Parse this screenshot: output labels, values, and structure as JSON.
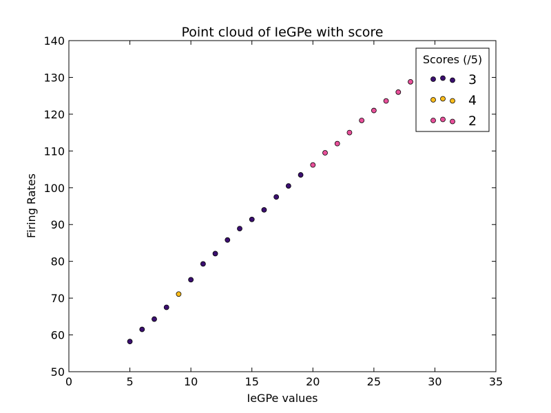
{
  "chart_data": {
    "type": "scatter",
    "title": "Point cloud of IeGPe with score",
    "xlabel": "IeGPe values",
    "ylabel": "Firing Rates",
    "xlim": [
      0,
      35
    ],
    "ylim": [
      50,
      140
    ],
    "xticks": [
      0,
      5,
      10,
      15,
      20,
      25,
      30,
      35
    ],
    "yticks": [
      50,
      60,
      70,
      80,
      90,
      100,
      110,
      120,
      130,
      140
    ],
    "grid": false,
    "legend": {
      "title": "Scores (/5)",
      "placement": "top-right",
      "entries": [
        {
          "label": "3",
          "color": "#3b0f70"
        },
        {
          "label": "4",
          "color": "#fcbc1c"
        },
        {
          "label": "2",
          "color": "#e8509a"
        }
      ]
    },
    "series": [
      {
        "name": "3",
        "color": "#3b0f70",
        "x": [
          5,
          6,
          7,
          8,
          10,
          11,
          12,
          13,
          14,
          15,
          16,
          17,
          18,
          19
        ],
        "y": [
          58.2,
          61.5,
          64.3,
          67.5,
          75.0,
          79.3,
          82.1,
          85.8,
          88.9,
          91.4,
          94.0,
          97.5,
          100.5,
          103.5
        ]
      },
      {
        "name": "4",
        "color": "#fcbc1c",
        "x": [
          9
        ],
        "y": [
          71.1
        ]
      },
      {
        "name": "2",
        "color": "#e8509a",
        "x": [
          20,
          21,
          22,
          23,
          24,
          25,
          26,
          27,
          28
        ],
        "y": [
          106.2,
          109.5,
          112.0,
          115.0,
          118.3,
          121.0,
          123.6,
          126.0,
          128.8
        ]
      }
    ]
  }
}
